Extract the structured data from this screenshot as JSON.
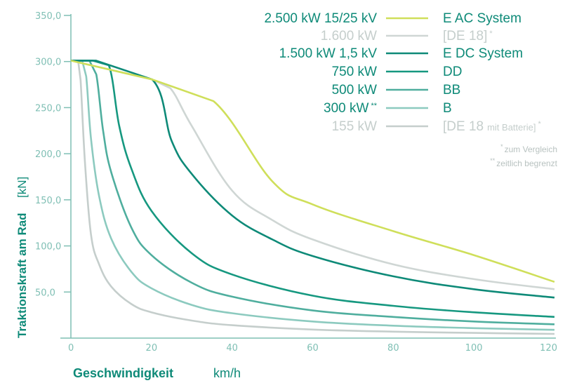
{
  "chart_data": {
    "type": "line",
    "xlabel": "Geschwindigkeit",
    "xunit": "km/h",
    "ylabel": "Traktionskraft am Rad",
    "yunit": "[kN]",
    "xlim": [
      0,
      120
    ],
    "ylim": [
      0,
      350
    ],
    "x_ticks": [
      "0",
      "20",
      "40",
      "60",
      "80",
      "100",
      "120"
    ],
    "y_ticks": [
      "50,0",
      "100,0",
      "150,0",
      "200,0",
      "250,0",
      "300,0",
      "350,0"
    ],
    "grid": false,
    "legend_position": "top-right",
    "series": [
      {
        "name": "E AC System",
        "power": "2.500 kW  15/25 kV",
        "color": "#cfdf5a",
        "x": [
          0,
          20.2,
          35.4,
          50,
          60,
          80,
          100,
          120
        ],
        "y": [
          301,
          280.5,
          257,
          170,
          145,
          116,
          90,
          61
        ]
      },
      {
        "name": "[DE 18]",
        "power": "1.600 kW",
        "marker": "*",
        "color": "#cfd6d4",
        "x": [
          0,
          20.2,
          24.7,
          30,
          40,
          50,
          60,
          80,
          100,
          120
        ],
        "y": [
          301,
          280.5,
          271,
          230,
          160,
          128,
          107,
          80,
          64,
          53
        ]
      },
      {
        "name": "E DC System",
        "power": "1.500 kW  1,5 kV",
        "color": "#0e8a78",
        "x": [
          0,
          6.2,
          20.2,
          25,
          30,
          40,
          50,
          60,
          80,
          100,
          120
        ],
        "y": [
          301,
          301,
          280.5,
          214,
          178,
          133,
          107,
          89,
          67,
          53,
          44
        ]
      },
      {
        "name": "DD",
        "color": "#169880",
        "x": [
          0,
          5.4,
          9.4,
          12,
          15,
          20,
          30,
          40,
          60,
          80,
          100,
          120
        ],
        "y": [
          301,
          301,
          296,
          230,
          184,
          138,
          92,
          69,
          46,
          35,
          28,
          23
        ]
      },
      {
        "name": "BB",
        "power": "500 kW",
        "color": "#4fae9e",
        "x": [
          0,
          4.6,
          6.3,
          8,
          10,
          15,
          20,
          30,
          40,
          60,
          80,
          100,
          120
        ],
        "y": [
          301,
          301,
          286,
          225,
          180,
          120,
          90,
          60,
          45,
          30,
          23,
          18,
          15
        ]
      },
      {
        "name": "B",
        "power": "300 kW",
        "marker": "**",
        "color": "#8ccabf",
        "x": [
          0,
          2.8,
          3.8,
          5,
          7,
          10,
          15,
          20,
          30,
          40,
          60,
          80,
          100,
          120
        ],
        "y": [
          301,
          301,
          284,
          216,
          154,
          108,
          72,
          54,
          36,
          27,
          18,
          13.5,
          10.8,
          9
        ]
      },
      {
        "name": "[DE 18 mit Batterie]",
        "power": "155 kW",
        "marker": "*",
        "color": "#c5cecc",
        "x": [
          0,
          1.8,
          2.4,
          3.5,
          5,
          7,
          10,
          15,
          20,
          30,
          40,
          60,
          80,
          100,
          120
        ],
        "y": [
          301,
          301,
          280,
          190,
          112,
          80,
          56,
          37,
          28,
          19,
          14,
          9.3,
          7,
          5.6,
          4.6
        ]
      }
    ],
    "legend": {
      "rows": [
        {
          "left": "2.500 kW  15/25 kV",
          "right": "E AC System"
        },
        {
          "left": "1.600 kW",
          "right": "[DE 18]",
          "right_sup": "*"
        },
        {
          "left": "1.500 kW  1,5 kV",
          "right": "E DC System"
        },
        {
          "left": "750 kW",
          "right": "DD"
        },
        {
          "left": "500 kW",
          "right": "BB"
        },
        {
          "left": "300 kW",
          "left_sup": "**",
          "right": "B"
        },
        {
          "left": "155 kW",
          "right": "[DE 18",
          "right_small": "mit Batterie]",
          "right_sup": "*"
        }
      ]
    },
    "notes": {
      "note1_mark": "*",
      "note1_text": "zum Vergleich",
      "note2_mark": "**",
      "note2_text": "zeitlich begrenzt"
    }
  }
}
